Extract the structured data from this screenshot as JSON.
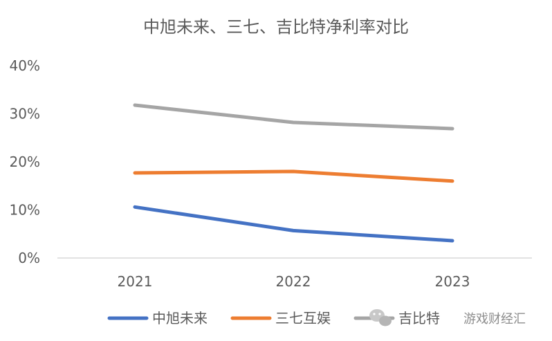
{
  "chart_data": {
    "type": "line",
    "title": "中旭未来、三七、吉比特净利率对比",
    "categories": [
      "2021",
      "2022",
      "2023"
    ],
    "ylim": [
      0,
      40
    ],
    "yticks": [
      "0%",
      "10%",
      "20%",
      "30%",
      "40%"
    ],
    "ytick_values": [
      0,
      10,
      20,
      30,
      40
    ],
    "series": [
      {
        "name": "中旭未来",
        "color": "#4472C4",
        "values": [
          10.6,
          5.7,
          3.6
        ]
      },
      {
        "name": "三七互娱",
        "color": "#ED7D31",
        "values": [
          17.7,
          18.0,
          16.0
        ]
      },
      {
        "name": "吉比特",
        "color": "#A5A5A5",
        "values": [
          31.8,
          28.2,
          26.9
        ]
      }
    ],
    "legend_position": "bottom",
    "grid": false
  },
  "watermark": {
    "text": "游戏财经汇"
  }
}
